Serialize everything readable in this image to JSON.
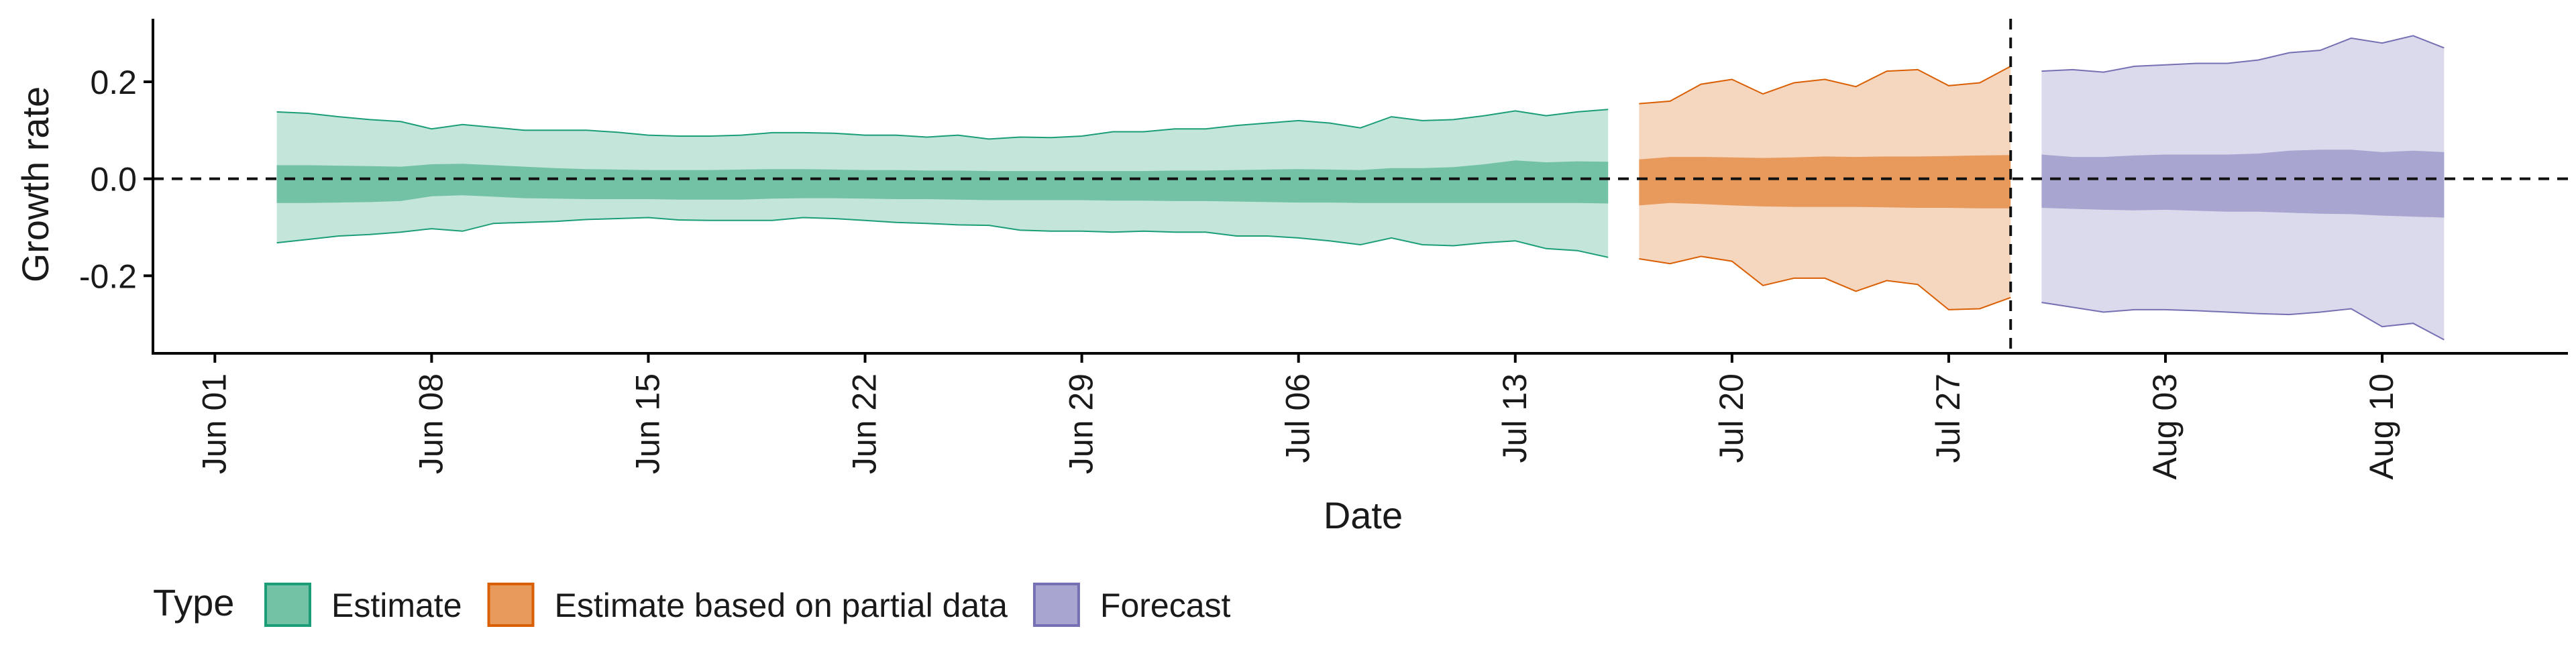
{
  "chart_data": {
    "type": "area",
    "xlabel": "Date",
    "ylabel": "Growth rate",
    "xlim": [
      "2024-05-30",
      "2024-08-16"
    ],
    "ylim": [
      -0.36,
      0.33
    ],
    "x_ticks": [
      {
        "date": "2024-06-01",
        "label": "Jun 01"
      },
      {
        "date": "2024-06-08",
        "label": "Jun 08"
      },
      {
        "date": "2024-06-15",
        "label": "Jun 15"
      },
      {
        "date": "2024-06-22",
        "label": "Jun 22"
      },
      {
        "date": "2024-06-29",
        "label": "Jun 29"
      },
      {
        "date": "2024-07-06",
        "label": "Jul 06"
      },
      {
        "date": "2024-07-13",
        "label": "Jul 13"
      },
      {
        "date": "2024-07-20",
        "label": "Jul 20"
      },
      {
        "date": "2024-07-27",
        "label": "Jul 27"
      },
      {
        "date": "2024-08-03",
        "label": "Aug 03"
      },
      {
        "date": "2024-08-10",
        "label": "Aug 10"
      }
    ],
    "y_ticks": [
      {
        "value": 0.2,
        "label": "0.2"
      },
      {
        "value": 0.0,
        "label": "0.0"
      },
      {
        "value": -0.2,
        "label": "-0.2"
      }
    ],
    "reference_lines": {
      "horizontal_y": 0.0,
      "vertical_date": "2024-07-29"
    },
    "legend": {
      "title": "Type",
      "placement": "bottom-left"
    },
    "series": [
      {
        "name": "Estimate",
        "fill_outer": "#c4e6da",
        "fill_inner": "#73c2a6",
        "stroke": "#1b9e77",
        "dates": [
          "2024-06-03",
          "2024-06-04",
          "2024-06-05",
          "2024-06-06",
          "2024-06-07",
          "2024-06-08",
          "2024-06-09",
          "2024-06-10",
          "2024-06-11",
          "2024-06-12",
          "2024-06-13",
          "2024-06-14",
          "2024-06-15",
          "2024-06-16",
          "2024-06-17",
          "2024-06-18",
          "2024-06-19",
          "2024-06-20",
          "2024-06-21",
          "2024-06-22",
          "2024-06-23",
          "2024-06-24",
          "2024-06-25",
          "2024-06-26",
          "2024-06-27",
          "2024-06-28",
          "2024-06-29",
          "2024-06-30",
          "2024-07-01",
          "2024-07-02",
          "2024-07-03",
          "2024-07-04",
          "2024-07-05",
          "2024-07-06",
          "2024-07-07",
          "2024-07-08",
          "2024-07-09",
          "2024-07-10",
          "2024-07-11",
          "2024-07-12",
          "2024-07-13",
          "2024-07-14",
          "2024-07-15",
          "2024-07-16"
        ],
        "upper_90": [
          0.138,
          0.135,
          0.128,
          0.122,
          0.118,
          0.103,
          0.112,
          0.106,
          0.1,
          0.1,
          0.1,
          0.096,
          0.09,
          0.088,
          0.088,
          0.09,
          0.095,
          0.095,
          0.094,
          0.09,
          0.09,
          0.086,
          0.09,
          0.082,
          0.086,
          0.085,
          0.088,
          0.097,
          0.097,
          0.103,
          0.103,
          0.11,
          0.115,
          0.12,
          0.115,
          0.105,
          0.128,
          0.12,
          0.122,
          0.13,
          0.14,
          0.13,
          0.138,
          0.143
        ],
        "upper_50": [
          0.028,
          0.028,
          0.027,
          0.026,
          0.025,
          0.03,
          0.031,
          0.028,
          0.025,
          0.022,
          0.02,
          0.019,
          0.018,
          0.018,
          0.018,
          0.019,
          0.02,
          0.02,
          0.019,
          0.018,
          0.018,
          0.017,
          0.017,
          0.016,
          0.016,
          0.016,
          0.016,
          0.016,
          0.016,
          0.017,
          0.017,
          0.018,
          0.019,
          0.02,
          0.019,
          0.018,
          0.022,
          0.022,
          0.024,
          0.03,
          0.038,
          0.034,
          0.036,
          0.035
        ],
        "lower_50": [
          -0.05,
          -0.05,
          -0.049,
          -0.048,
          -0.046,
          -0.036,
          -0.034,
          -0.037,
          -0.04,
          -0.041,
          -0.042,
          -0.042,
          -0.042,
          -0.043,
          -0.043,
          -0.043,
          -0.041,
          -0.04,
          -0.04,
          -0.041,
          -0.042,
          -0.042,
          -0.043,
          -0.044,
          -0.044,
          -0.044,
          -0.044,
          -0.045,
          -0.045,
          -0.046,
          -0.046,
          -0.047,
          -0.048,
          -0.049,
          -0.049,
          -0.05,
          -0.05,
          -0.05,
          -0.05,
          -0.05,
          -0.05,
          -0.05,
          -0.05,
          -0.051
        ],
        "lower_90": [
          -0.132,
          -0.125,
          -0.118,
          -0.115,
          -0.11,
          -0.103,
          -0.108,
          -0.092,
          -0.09,
          -0.088,
          -0.084,
          -0.082,
          -0.08,
          -0.085,
          -0.086,
          -0.086,
          -0.086,
          -0.08,
          -0.082,
          -0.086,
          -0.09,
          -0.092,
          -0.095,
          -0.096,
          -0.106,
          -0.108,
          -0.108,
          -0.11,
          -0.108,
          -0.11,
          -0.11,
          -0.118,
          -0.118,
          -0.122,
          -0.128,
          -0.136,
          -0.122,
          -0.136,
          -0.138,
          -0.132,
          -0.128,
          -0.144,
          -0.148,
          -0.162
        ]
      },
      {
        "name": "Estimate based on partial data",
        "fill_outer": "#f5d6bf",
        "fill_inner": "#e8995c",
        "stroke": "#d95f02",
        "dates": [
          "2024-07-17",
          "2024-07-18",
          "2024-07-19",
          "2024-07-20",
          "2024-07-21",
          "2024-07-22",
          "2024-07-23",
          "2024-07-24",
          "2024-07-25",
          "2024-07-26",
          "2024-07-27",
          "2024-07-28",
          "2024-07-29"
        ],
        "upper_90": [
          0.155,
          0.16,
          0.195,
          0.205,
          0.175,
          0.198,
          0.205,
          0.19,
          0.222,
          0.225,
          0.192,
          0.198,
          0.232
        ],
        "upper_50": [
          0.04,
          0.045,
          0.045,
          0.044,
          0.043,
          0.044,
          0.046,
          0.045,
          0.046,
          0.046,
          0.047,
          0.048,
          0.049
        ],
        "lower_50": [
          -0.055,
          -0.05,
          -0.052,
          -0.055,
          -0.057,
          -0.058,
          -0.058,
          -0.058,
          -0.059,
          -0.06,
          -0.06,
          -0.061,
          -0.061
        ],
        "lower_90": [
          -0.165,
          -0.175,
          -0.16,
          -0.17,
          -0.22,
          -0.205,
          -0.205,
          -0.232,
          -0.21,
          -0.218,
          -0.27,
          -0.268,
          -0.245
        ]
      },
      {
        "name": "Forecast",
        "fill_outer": "#dadaec",
        "fill_inner": "#a8a5d1",
        "stroke": "#7570b3",
        "dates": [
          "2024-07-30",
          "2024-07-31",
          "2024-08-01",
          "2024-08-02",
          "2024-08-03",
          "2024-08-04",
          "2024-08-05",
          "2024-08-06",
          "2024-08-07",
          "2024-08-08",
          "2024-08-09",
          "2024-08-10",
          "2024-08-11",
          "2024-08-12"
        ],
        "upper_90": [
          0.222,
          0.225,
          0.22,
          0.232,
          0.235,
          0.238,
          0.238,
          0.245,
          0.26,
          0.265,
          0.29,
          0.28,
          0.295,
          0.27
        ],
        "upper_50": [
          0.05,
          0.045,
          0.045,
          0.048,
          0.05,
          0.05,
          0.05,
          0.052,
          0.058,
          0.06,
          0.06,
          0.055,
          0.058,
          0.055
        ],
        "lower_50": [
          -0.06,
          -0.062,
          -0.064,
          -0.065,
          -0.064,
          -0.066,
          -0.068,
          -0.068,
          -0.07,
          -0.072,
          -0.073,
          -0.076,
          -0.078,
          -0.08
        ],
        "lower_90": [
          -0.255,
          -0.265,
          -0.275,
          -0.27,
          -0.27,
          -0.272,
          -0.275,
          -0.278,
          -0.28,
          -0.275,
          -0.268,
          -0.305,
          -0.298,
          -0.332
        ]
      }
    ]
  }
}
